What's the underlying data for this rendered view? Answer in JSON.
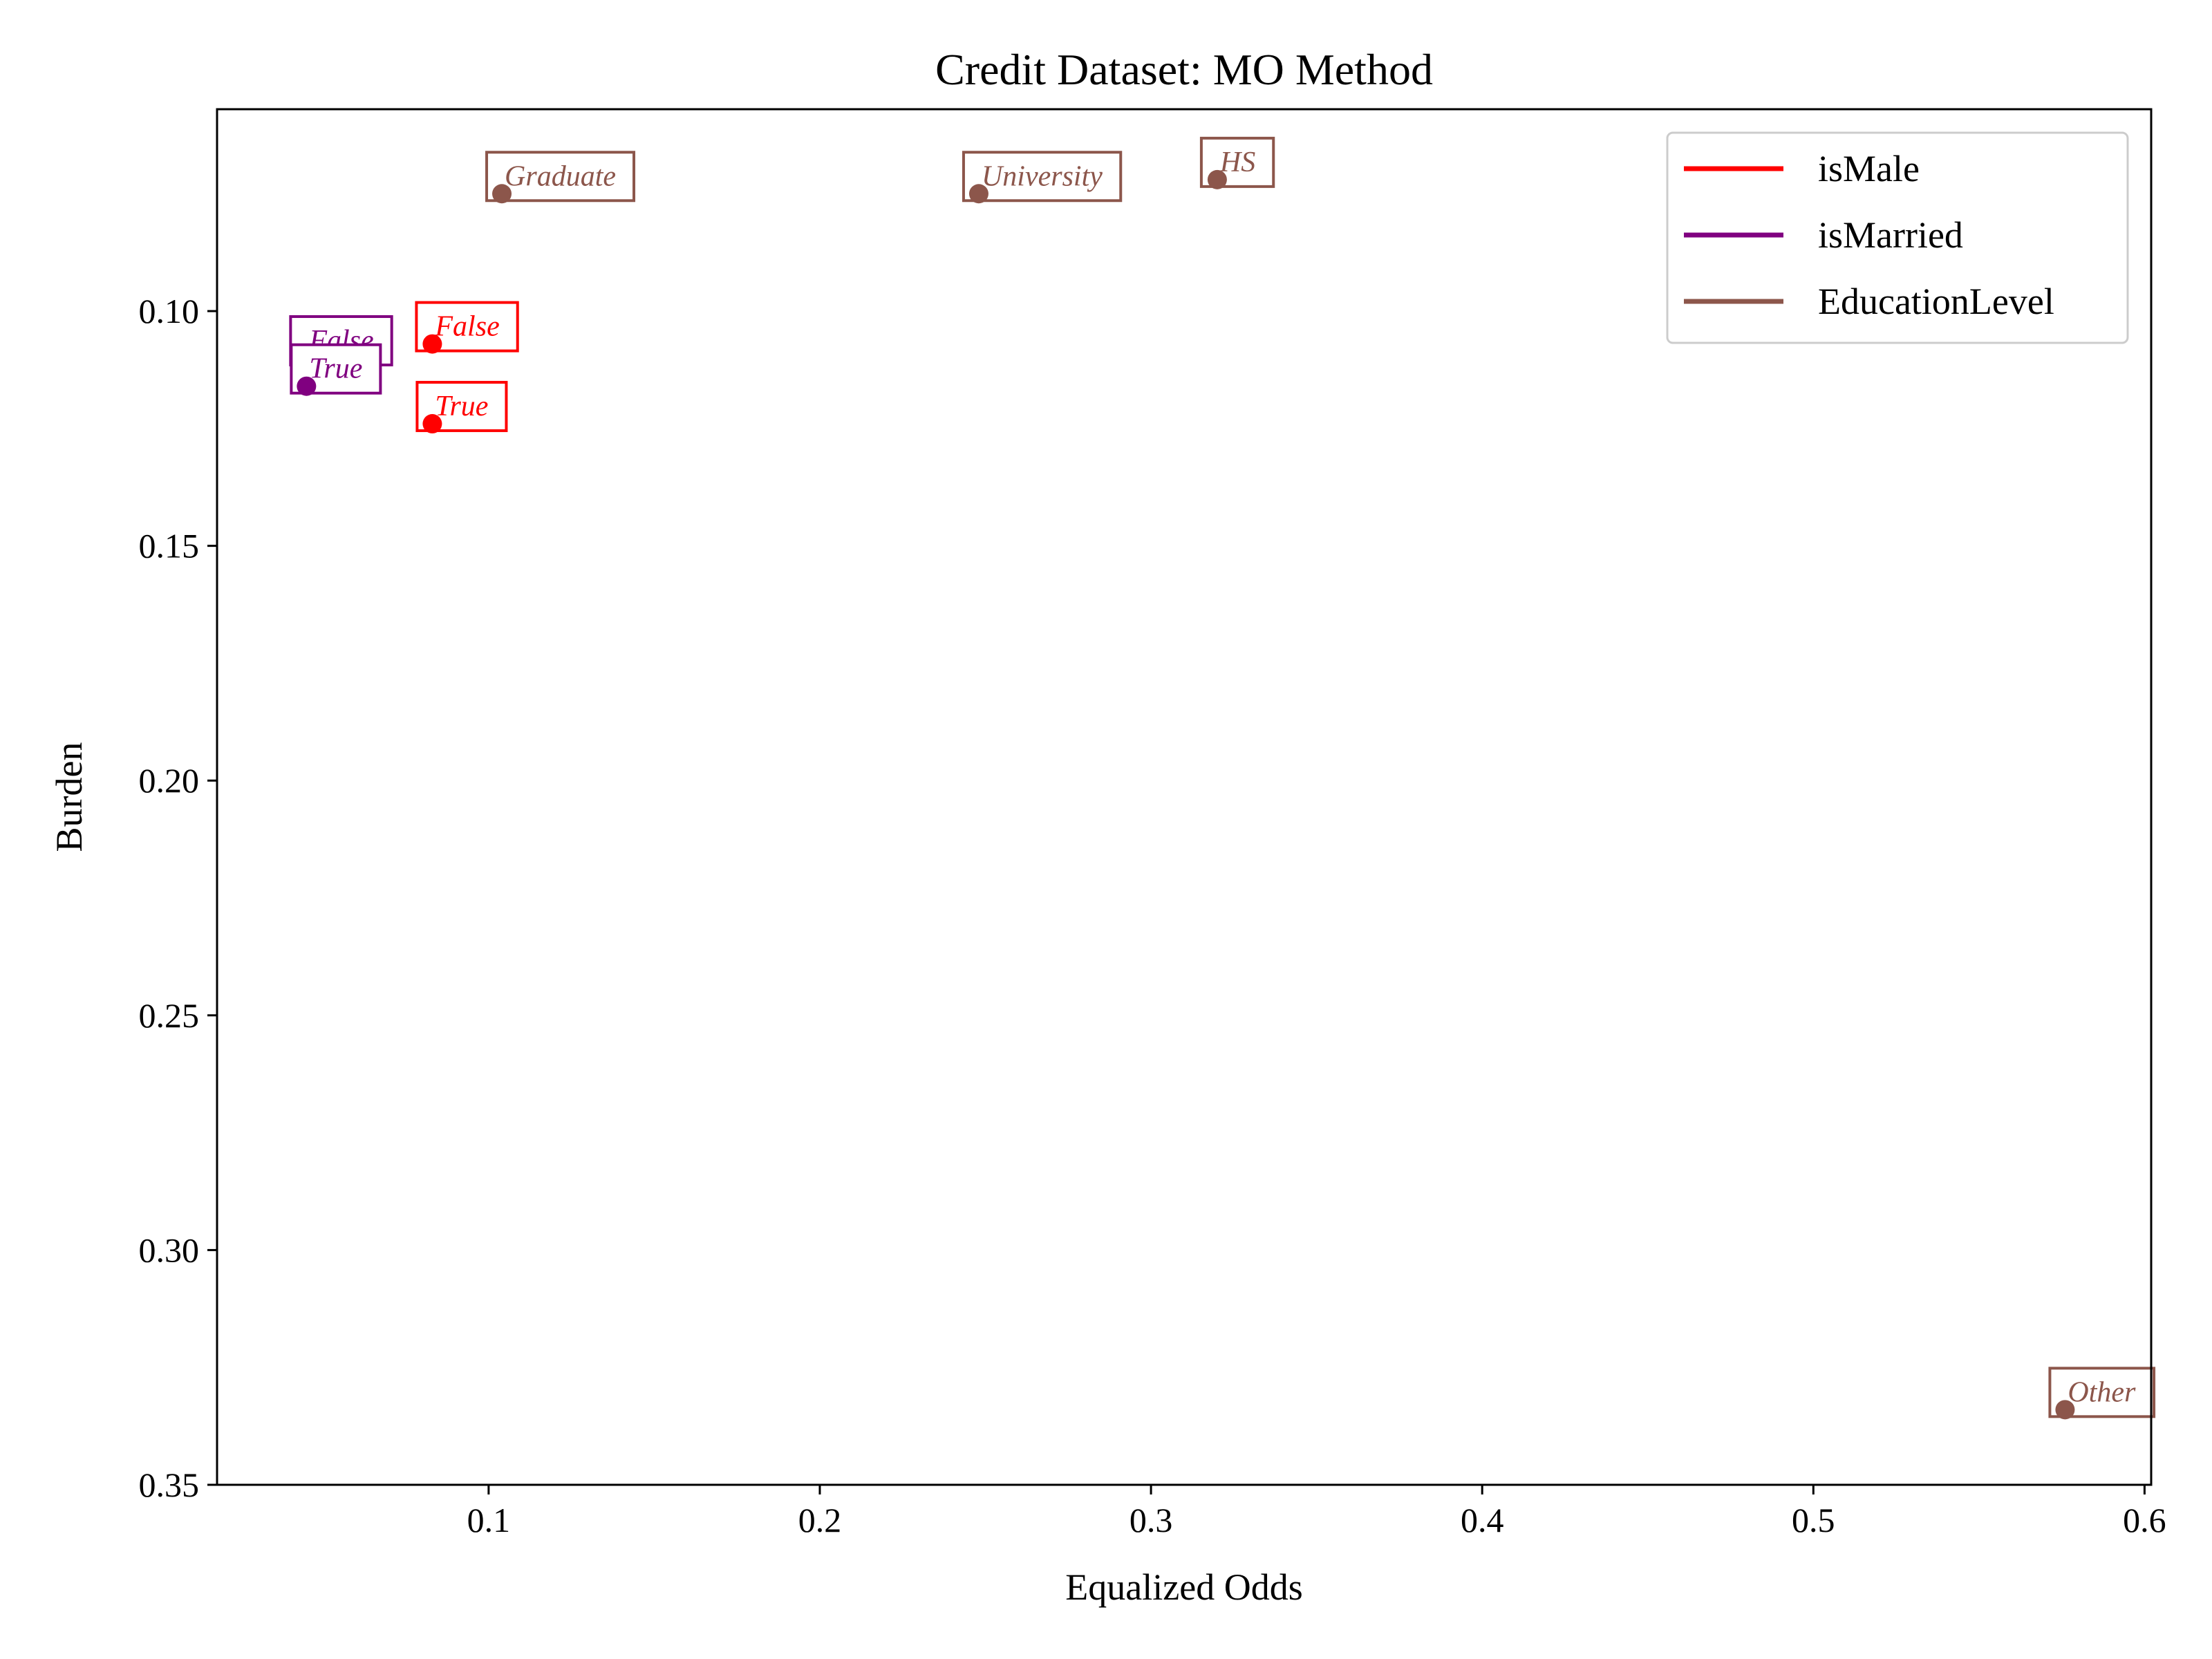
{
  "chart_data": {
    "type": "scatter",
    "title": "Credit Dataset: MO Method",
    "xlabel": "Equalized Odds",
    "ylabel": "Burden",
    "xlim": [
      0.018,
      0.602
    ],
    "ylim": [
      0.057,
      0.35
    ],
    "y_inverted": true,
    "x_ticks": [
      0.1,
      0.2,
      0.3,
      0.4,
      0.5,
      0.6
    ],
    "x_tick_labels": [
      "0.1",
      "0.2",
      "0.3",
      "0.4",
      "0.5",
      "0.6"
    ],
    "y_ticks": [
      0.1,
      0.15,
      0.2,
      0.25,
      0.3,
      0.35
    ],
    "y_tick_labels": [
      "0.10",
      "0.15",
      "0.20",
      "0.25",
      "0.30",
      "0.35"
    ],
    "grid": false,
    "legend_position": "top-right",
    "series": [
      {
        "name": "isMale",
        "color": "#ff0000",
        "points": [
          {
            "label": "False",
            "x": 0.083,
            "y": 0.107
          },
          {
            "label": "True",
            "x": 0.083,
            "y": 0.124
          }
        ]
      },
      {
        "name": "isMarried",
        "color": "#800080",
        "points": [
          {
            "label": "False",
            "x": 0.045,
            "y": 0.11
          },
          {
            "label": "True",
            "x": 0.045,
            "y": 0.116
          }
        ]
      },
      {
        "name": "EducationLevel",
        "color": "#8c564b",
        "points": [
          {
            "label": "Graduate",
            "x": 0.104,
            "y": 0.075
          },
          {
            "label": "University",
            "x": 0.248,
            "y": 0.075
          },
          {
            "label": "HS",
            "x": 0.32,
            "y": 0.072
          },
          {
            "label": "Other",
            "x": 0.576,
            "y": 0.334
          }
        ]
      }
    ]
  }
}
